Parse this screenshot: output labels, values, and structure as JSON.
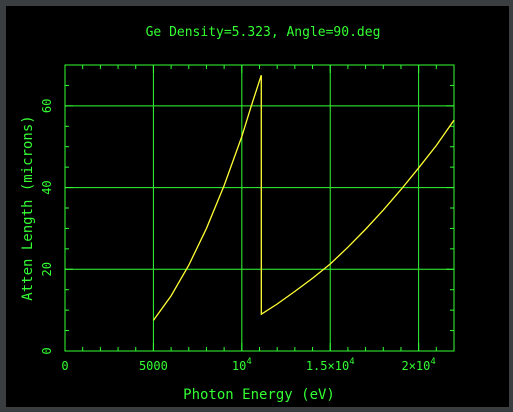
{
  "chart_data": {
    "type": "line",
    "title": "Ge Density=5.323, Angle=90.deg",
    "xlabel": "Photon Energy (eV)",
    "ylabel": "Atten Length (microns)",
    "xlim": [
      0,
      22000
    ],
    "ylim": [
      0,
      70
    ],
    "grid": true,
    "x_ticks": [
      {
        "value": 0,
        "label": "0"
      },
      {
        "value": 5000,
        "label": "5000"
      },
      {
        "value": 10000,
        "label": "10",
        "exp": "4"
      },
      {
        "value": 15000,
        "label": "1.5×10",
        "exp": "4"
      },
      {
        "value": 20000,
        "label": "2×10",
        "exp": "4"
      }
    ],
    "y_ticks": [
      {
        "value": 0,
        "label": "0"
      },
      {
        "value": 20,
        "label": "20"
      },
      {
        "value": 40,
        "label": "40"
      },
      {
        "value": 60,
        "label": "60"
      }
    ],
    "series": [
      {
        "color": "#ffff33",
        "x": [
          5000,
          6000,
          7000,
          8000,
          9000,
          10000,
          10500,
          11100,
          11103,
          12000,
          13000,
          14000,
          15000,
          16000,
          17000,
          18000,
          19000,
          20000,
          21000,
          22000
        ],
        "y": [
          7.5,
          13.5,
          21.0,
          30.0,
          40.5,
          52.5,
          59.5,
          67.5,
          9.0,
          11.5,
          14.6,
          17.8,
          21.3,
          25.4,
          29.8,
          34.5,
          39.5,
          44.8,
          50.3,
          56.5
        ]
      }
    ]
  },
  "colors": {
    "frame": "#3b3e40",
    "background": "#000000",
    "axes": "#33ff33",
    "title": "#33ff33",
    "curve": "#ffff33"
  }
}
